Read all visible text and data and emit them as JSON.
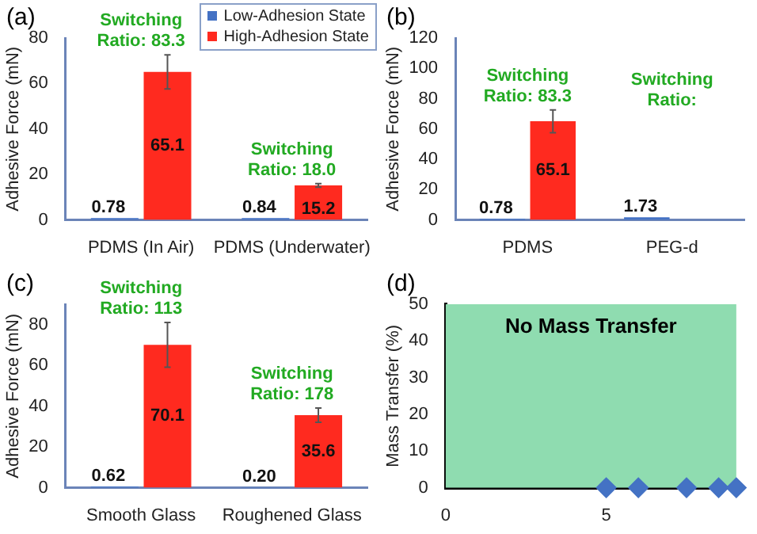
{
  "chart_data": [
    {
      "type": "bar",
      "title": "(a)",
      "ylabel": "Adhesive Force (mN)",
      "categories": [
        "PDMS (In Air)",
        "PDMS (Underwater)"
      ],
      "series": [
        {
          "name": "Low-Adhesion State",
          "color": "#4472c4",
          "values": [
            0.78,
            0.84
          ]
        },
        {
          "name": "High-Adhesion State",
          "color": "#ff2a1f",
          "values": [
            65.1,
            15.2
          ],
          "errors": [
            7.5,
            0.8
          ]
        }
      ],
      "ylim": [
        0,
        80
      ],
      "yticks": [
        0,
        20,
        40,
        60,
        80
      ],
      "data_labels": true,
      "legend": "top right",
      "annotations": [
        "Switching Ratio: 83.3",
        "Switching Ratio: 18.0"
      ]
    },
    {
      "type": "bar",
      "title": "(b)",
      "ylabel": "Adhesive Force (mN)",
      "categories": [
        "PDMS",
        "PEG-d"
      ],
      "series": [
        {
          "color": "#4472c4",
          "values": [
            0.78,
            1.73
          ]
        },
        {
          "color": "#ff2a1f",
          "values": [
            65.1,
            null
          ],
          "errors": [
            7.5,
            null
          ]
        }
      ],
      "ylim": [
        0,
        120
      ],
      "yticks": [
        0,
        20,
        40,
        60,
        80,
        100,
        120
      ],
      "data_labels": true,
      "annotations": [
        "Switching Ratio: 83.3",
        "Switching Ratio:"
      ]
    },
    {
      "type": "bar",
      "title": "(c)",
      "ylabel": "Adhesive Force (mN)",
      "categories": [
        "Smooth Glass",
        "Roughened Glass"
      ],
      "series": [
        {
          "color": "#4472c4",
          "values": [
            0.62,
            0.2
          ],
          "value_labels": [
            "0.62",
            "0.20"
          ]
        },
        {
          "color": "#ff2a1f",
          "values": [
            70.1,
            35.6
          ],
          "errors": [
            11,
            3.5
          ]
        }
      ],
      "ylim": [
        0,
        90
      ],
      "yticks": [
        0,
        20,
        40,
        60,
        80
      ],
      "data_labels": true,
      "annotations": [
        "Switching Ratio: 113",
        "Switching Ratio: 178"
      ]
    },
    {
      "type": "scatter",
      "title": "(d)",
      "ylabel": "Mass Transfer (%)",
      "x": [
        5,
        6,
        7.5,
        8.5,
        9.05
      ],
      "series": [
        {
          "color": "#4472c4",
          "values": [
            0,
            0,
            0,
            0,
            0
          ]
        }
      ],
      "xlim": [
        0,
        9.3
      ],
      "xticks": [
        0,
        5
      ],
      "ylim": [
        0,
        50
      ],
      "yticks": [
        0,
        10,
        20,
        30,
        40,
        50
      ],
      "marker": "diamond",
      "bands": [
        {
          "axis": "x",
          "from": 0,
          "to": 9.05,
          "label": "No Mass Transfer",
          "color": "#8fdcb0"
        }
      ]
    }
  ]
}
